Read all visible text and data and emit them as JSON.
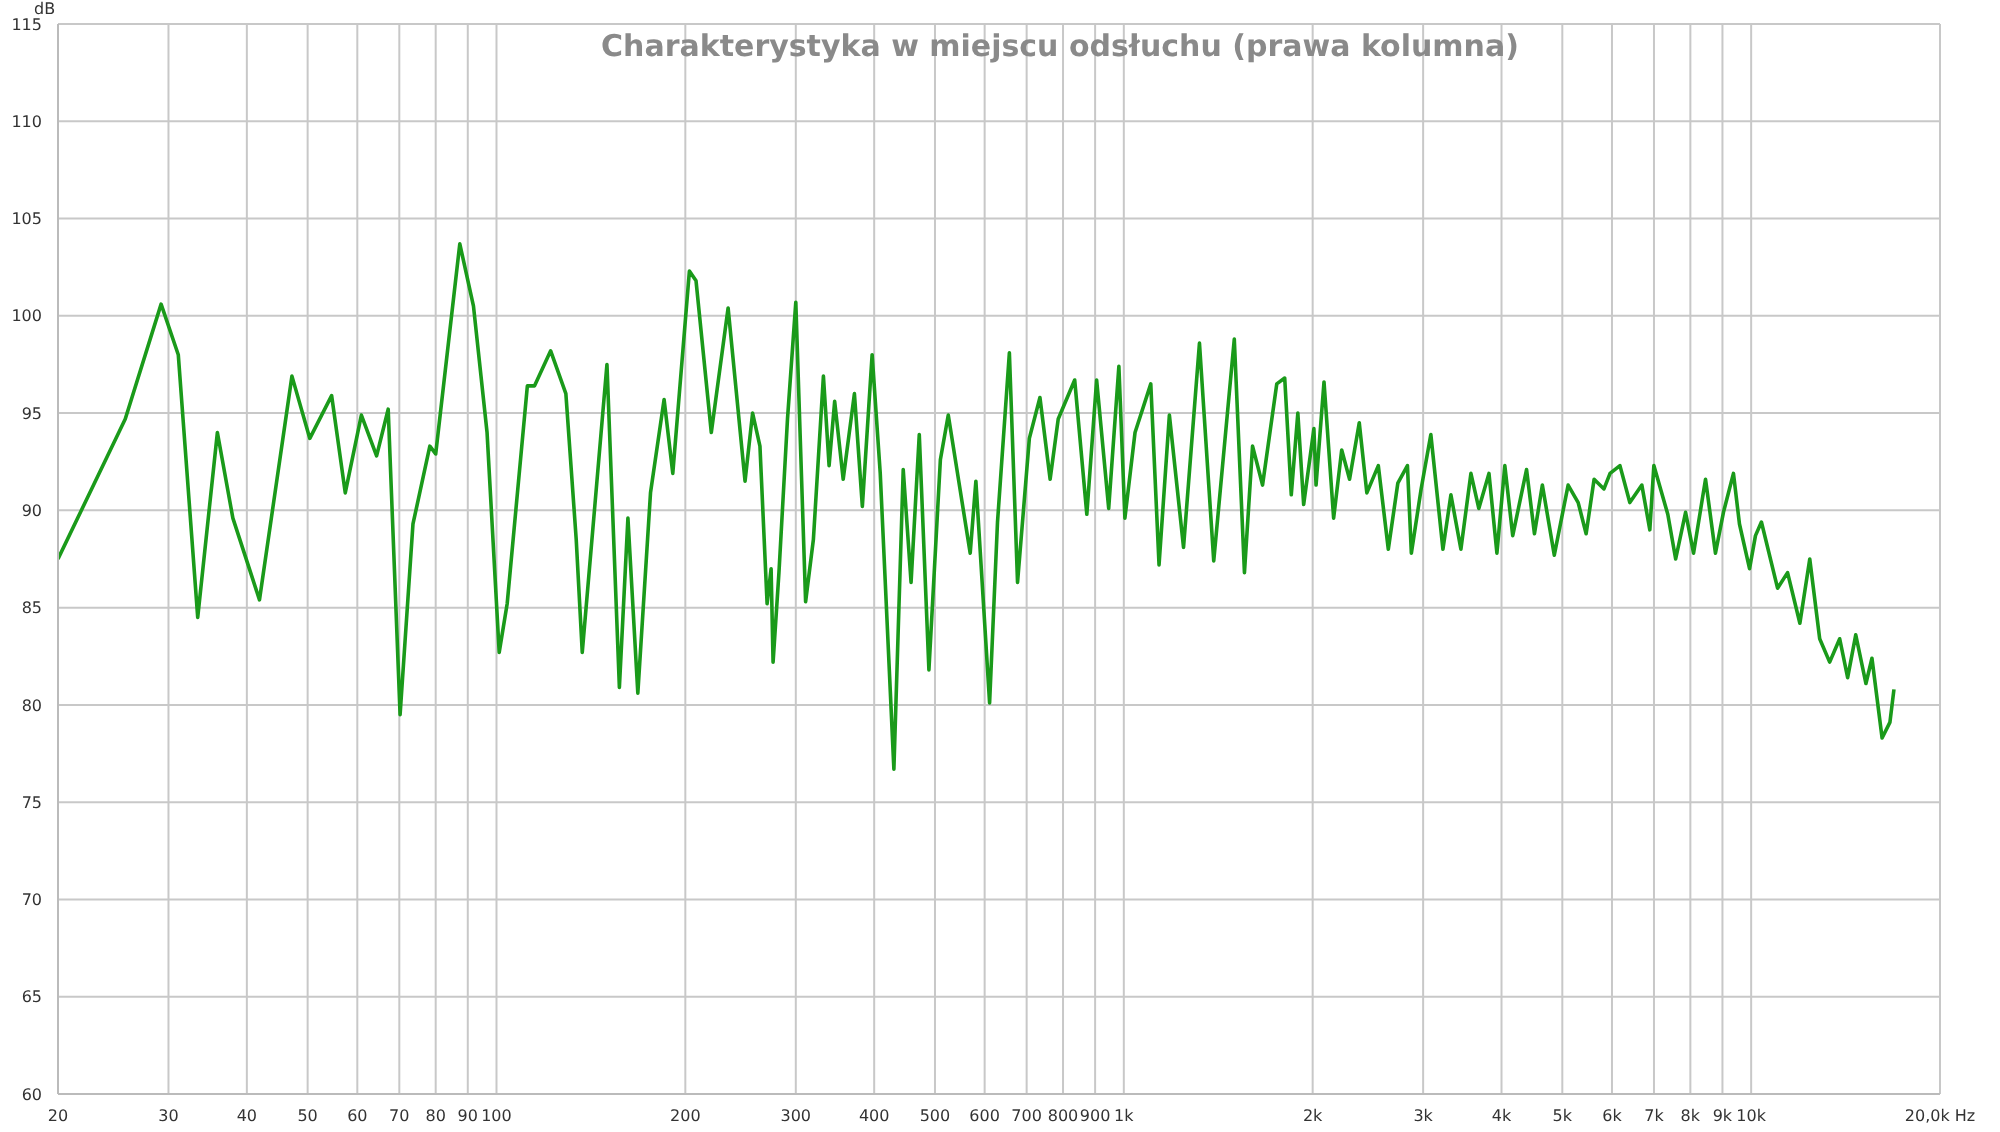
{
  "chart_data": {
    "type": "line",
    "title": "Charakterystyka w miejscu odsłuchu (prawa kolumna)",
    "ylabel": "dB",
    "log": "x",
    "grid": true,
    "xlim": [
      20,
      20000
    ],
    "ylim": [
      60,
      115
    ],
    "xticks": [
      20,
      30,
      40,
      50,
      60,
      70,
      80,
      90,
      100,
      200,
      300,
      400,
      500,
      600,
      700,
      800,
      900,
      {
        "value": 1000,
        "label": "1k"
      },
      {
        "value": 2000,
        "label": "2k"
      },
      {
        "value": 3000,
        "label": "3k"
      },
      {
        "value": 4000,
        "label": "4k"
      },
      {
        "value": 5000,
        "label": "5k"
      },
      {
        "value": 6000,
        "label": "6k"
      },
      {
        "value": 7000,
        "label": "7k"
      },
      {
        "value": 8000,
        "label": "8k"
      },
      {
        "value": 9000,
        "label": "9k"
      },
      {
        "value": 10000,
        "label": "10k"
      },
      {
        "value": 20000,
        "label": "20,0k Hz"
      }
    ],
    "yticks": [
      60,
      65,
      70,
      75,
      80,
      85,
      90,
      95,
      100,
      105,
      110,
      115
    ],
    "series": [
      {
        "color": "#1a9a1a",
        "x": [
          20,
          25.6,
          29.2,
          31.1,
          33.4,
          35.9,
          38,
          41.9,
          47.2,
          50.4,
          54.6,
          57.4,
          60.9,
          64.4,
          67.2,
          70.2,
          73.6,
          78.3,
          80,
          87.4,
          91.9,
          96.6,
          101,
          104,
          112,
          115,
          122,
          129,
          134,
          137,
          150,
          157,
          162,
          168,
          176,
          185,
          191,
          203,
          208,
          220,
          234,
          249,
          256,
          263,
          270,
          274,
          276,
          282,
          291,
          300,
          311,
          320,
          332,
          339,
          346,
          357,
          372,
          383,
          397,
          409,
          430,
          445,
          458,
          472,
          489,
          510,
          525,
          545,
          569,
          581,
          611,
          629,
          657,
          677,
          707,
          735,
          763,
          786,
          835,
          873,
          905,
          946,
          982,
          1004,
          1042,
          1104,
          1138,
          1182,
          1245,
          1320,
          1391,
          1500,
          1557,
          1604,
          1664,
          1753,
          1805,
          1849,
          1894,
          1935,
          2009,
          2025,
          2085,
          2160,
          2225,
          2290,
          2373,
          2440,
          2545,
          2640,
          2734,
          2832,
          2873,
          2978,
          3086,
          3226,
          3322,
          3446,
          3575,
          3680,
          3820,
          3933,
          4049,
          4168,
          4385,
          4514,
          4647,
          4855,
          5108,
          5300,
          5457,
          5619,
          5826,
          5958,
          6178,
          6406,
          6695,
          6894,
          6997,
          7364,
          7580,
          7861,
          8094,
          8458,
          8772,
          9033,
          9371,
          9580,
          9941,
          10160,
          10384,
          11018,
          11430,
          11958,
          12400,
          12860,
          13340,
          13840,
          14250,
          14680,
          15240,
          15580,
          16170,
          16640,
          16890
        ],
        "values": [
          87.5,
          94.7,
          100.6,
          98,
          84.5,
          94,
          89.6,
          85.4,
          96.9,
          93.7,
          95.9,
          90.9,
          94.9,
          92.8,
          95.2,
          79.5,
          89.3,
          93.3,
          92.9,
          103.7,
          100.5,
          94,
          82.7,
          85.2,
          96.4,
          96.4,
          98.2,
          96,
          88.5,
          82.7,
          97.5,
          80.9,
          89.6,
          80.6,
          90.9,
          95.7,
          91.9,
          102.3,
          101.8,
          94,
          100.4,
          91.5,
          95,
          93.3,
          85.2,
          87,
          82.2,
          86.8,
          94.7,
          100.7,
          85.3,
          88.5,
          96.9,
          92.3,
          95.6,
          91.6,
          96,
          90.2,
          98,
          91.9,
          76.7,
          92.1,
          86.3,
          93.9,
          81.8,
          92.6,
          94.9,
          91.6,
          87.8,
          91.5,
          80.1,
          89.4,
          98.1,
          86.3,
          93.7,
          95.8,
          91.6,
          94.7,
          96.7,
          89.8,
          96.7,
          90.1,
          97.4,
          89.6,
          94,
          96.5,
          87.2,
          94.9,
          88.1,
          98.6,
          87.4,
          98.8,
          86.8,
          93.3,
          91.3,
          96.5,
          96.8,
          90.8,
          95,
          90.3,
          94.2,
          91.3,
          96.6,
          89.6,
          93.1,
          91.6,
          94.5,
          90.9,
          92.3,
          88,
          91.4,
          92.3,
          87.8,
          91.1,
          93.9,
          88,
          90.8,
          88,
          91.9,
          90.1,
          91.9,
          87.8,
          92.3,
          88.7,
          92.1,
          88.8,
          91.3,
          87.7,
          91.3,
          90.4,
          88.8,
          91.6,
          91.1,
          91.9,
          92.3,
          90.4,
          91.3,
          89,
          92.3,
          89.8,
          87.5,
          89.9,
          87.8,
          91.6,
          87.8,
          89.9,
          91.9,
          89.3,
          87,
          88.7,
          89.4,
          86,
          86.8,
          84.2,
          87.5,
          83.4,
          82.2,
          83.4,
          81.4,
          83.6,
          81.1,
          82.4,
          78.3,
          79.1,
          80.8
        ]
      }
    ]
  }
}
